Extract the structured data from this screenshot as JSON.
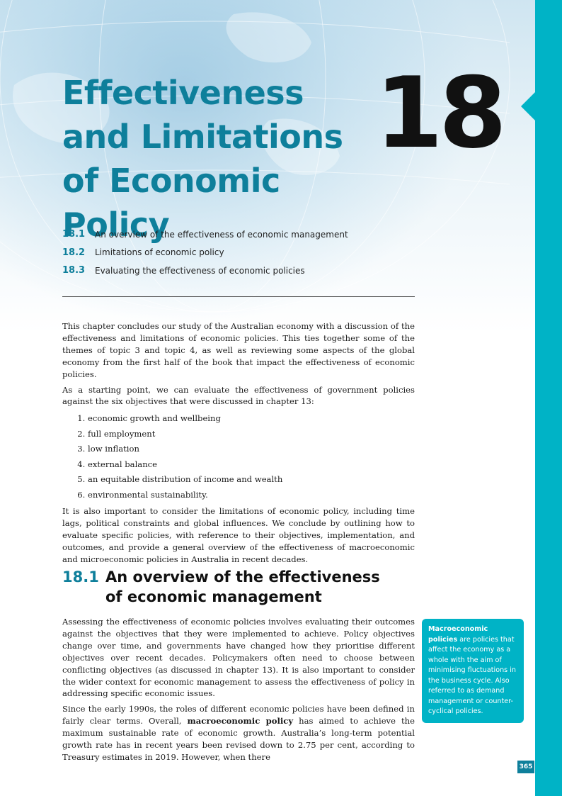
{
  "chapter": {
    "title_lines": [
      "Effectiveness",
      "and Limitations",
      "of Economic Policy"
    ],
    "number": "18"
  },
  "toc": [
    {
      "num": "18.1",
      "text": "An overview of the effectiveness of economic management"
    },
    {
      "num": "18.2",
      "text": "Limitations of economic policy"
    },
    {
      "num": "18.3",
      "text": "Evaluating the effectiveness of economic policies"
    }
  ],
  "intro": {
    "p1": "This chapter concludes our study of the Australian economy with a discussion of the effectiveness and limitations of economic policies. This ties together some of the themes of topic 3 and topic 4, as well as reviewing some aspects of the global economy from the first half of the book that impact the effectiveness of economic policies.",
    "p2": "As a starting point, we can evaluate the effectiveness of government policies against the six objectives that were discussed in chapter 13:",
    "objectives": [
      "economic growth and wellbeing",
      "full employment",
      "low inflation",
      "external balance",
      "an equitable distribution of income and wealth",
      "environmental sustainability."
    ],
    "p3": "It is also important to consider the limitations of economic policy, including time lags, political constraints and global influences. We conclude by outlining how to evaluate specific policies, with reference to their objectives, implementation, and outcomes, and provide a general overview of the effectiveness of macroeconomic and microeconomic policies in Australia in recent decades."
  },
  "section": {
    "num": "18.1",
    "title_line1": "An overview of the effectiveness",
    "title_line2": "of economic management",
    "p1": "Assessing the effectiveness of economic policies involves evaluating their outcomes against the objectives that they were implemented to achieve. Policy objectives change over time, and governments have changed how they prioritise different objectives over recent decades. Policymakers often need to choose between conflicting objectives (as discussed in chapter 13). It is also important to consider the wider context for economic management to assess the effectiveness of policy in addressing specific economic issues.",
    "p2_before": "Since the early 1990s, the roles of different economic policies have been defined in fairly clear terms. Overall, ",
    "p2_bold": "macroeconomic policy",
    "p2_after": " has aimed to achieve the maximum sustainable rate of economic growth. Australia’s long-term potential growth rate has in recent years been revised down to 2.75 per cent, according to Treasury estimates in 2019. However, when there"
  },
  "sidebar": {
    "term": "Macroeconomic policies",
    "definition": "are policies that affect the economy as a whole with the aim of minimising fluctuations in the business cycle. Also referred to as demand management or counter-cyclical policies."
  },
  "page_number": "365",
  "colors": {
    "accent": "#0e7f9b",
    "bar": "#00b3c6"
  }
}
